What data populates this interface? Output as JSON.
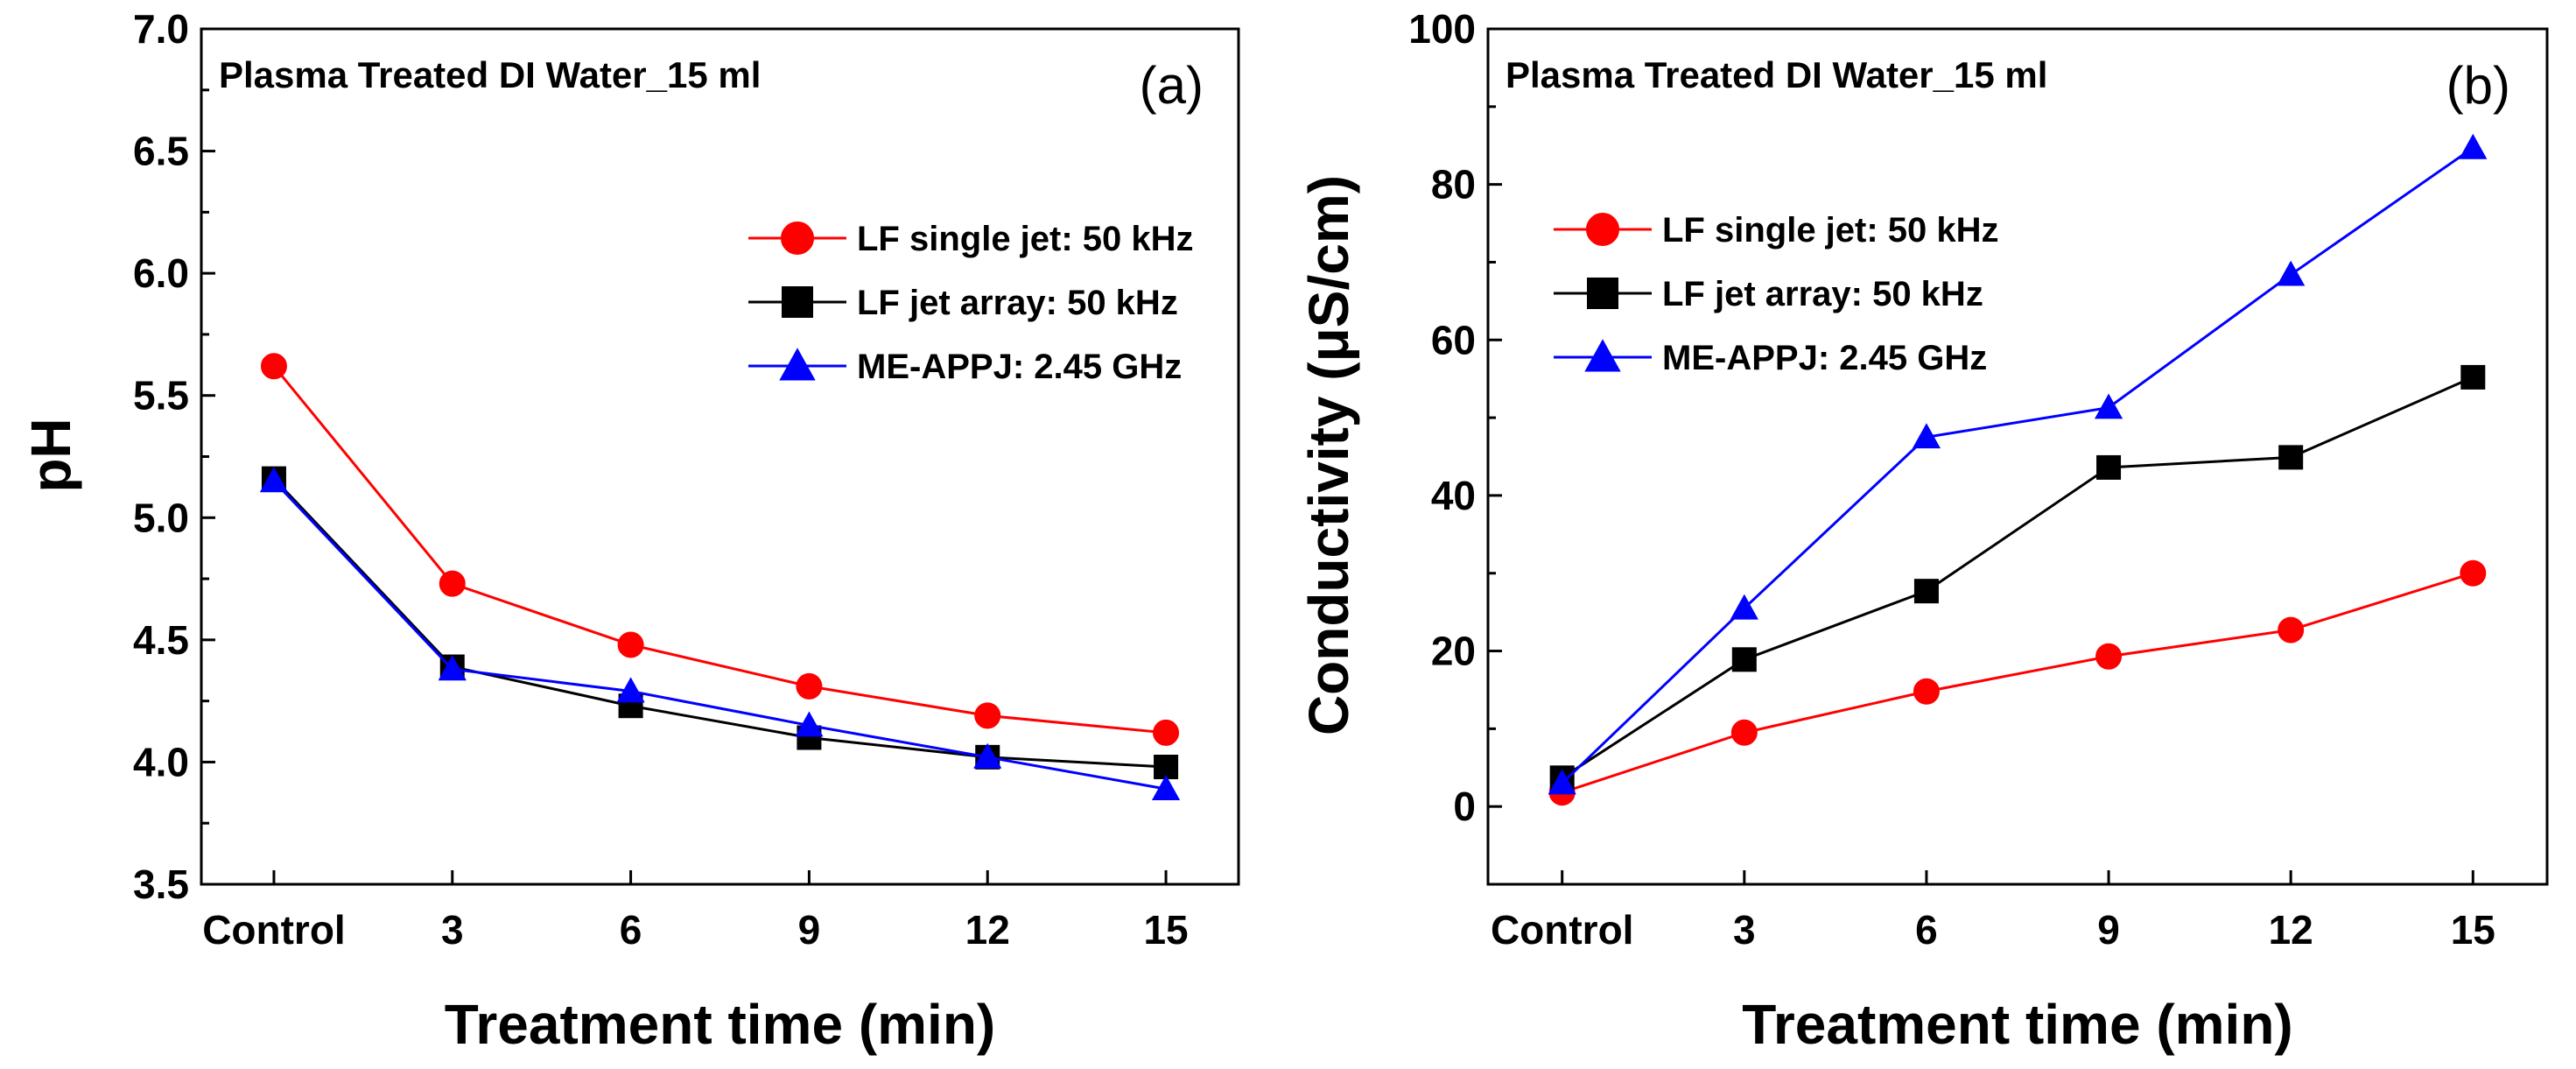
{
  "chart_data": [
    {
      "type": "line",
      "panel_label": "(a)",
      "title": "Plasma Treated DI Water_15 ml",
      "xlabel": "Treatment time (min)",
      "ylabel": "pH",
      "categories": [
        "Control",
        "3",
        "6",
        "9",
        "12",
        "15"
      ],
      "ylim": [
        3.5,
        7.0
      ],
      "yticks": [
        "3.5",
        "4.0",
        "4.5",
        "5.0",
        "5.5",
        "6.0",
        "6.5",
        "7.0"
      ],
      "legend_position": "upper-right",
      "series": [
        {
          "name": "LF single jet: 50 kHz",
          "color": "#ff0000",
          "marker": "circle",
          "values": [
            5.62,
            4.73,
            4.48,
            4.31,
            4.19,
            4.12
          ]
        },
        {
          "name": "LF jet array: 50 kHz",
          "color": "#000000",
          "marker": "square",
          "values": [
            5.16,
            4.39,
            4.23,
            4.1,
            4.02,
            3.98
          ]
        },
        {
          "name": "ME-APPJ: 2.45 GHz",
          "color": "#0000ff",
          "marker": "triangle",
          "values": [
            5.15,
            4.38,
            4.29,
            4.15,
            4.02,
            3.89
          ]
        }
      ]
    },
    {
      "type": "line",
      "panel_label": "(b)",
      "title": "Plasma Treated DI Water_15 ml",
      "xlabel": "Treatment time (min)",
      "ylabel": "Conductivity (μS/cm)",
      "categories": [
        "Control",
        "3",
        "6",
        "9",
        "12",
        "15"
      ],
      "ylim": [
        -10,
        100
      ],
      "yticks": [
        "0",
        "20",
        "40",
        "60",
        "80",
        "100"
      ],
      "legend_position": "upper-left",
      "series": [
        {
          "name": "LF single jet: 50 kHz",
          "color": "#ff0000",
          "marker": "circle",
          "values": [
            1.8,
            9.5,
            14.8,
            19.3,
            22.7,
            30.0
          ]
        },
        {
          "name": "LF jet array: 50 kHz",
          "color": "#000000",
          "marker": "square",
          "values": [
            3.7,
            18.9,
            27.7,
            43.6,
            44.9,
            55.2
          ]
        },
        {
          "name": "ME-APPJ: 2.45 GHz",
          "color": "#0000ff",
          "marker": "triangle",
          "values": [
            3.0,
            25.5,
            47.5,
            51.3,
            68.4,
            84.7
          ]
        }
      ]
    }
  ]
}
